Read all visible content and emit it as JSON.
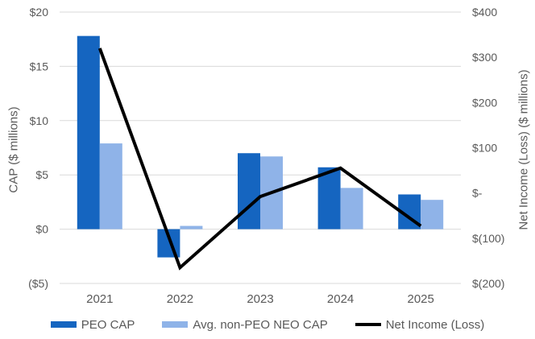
{
  "chart_data": {
    "type": "bar",
    "subtype": "combo-bar-line-dual-axis",
    "categories": [
      "2021",
      "2022",
      "2023",
      "2024",
      "2025"
    ],
    "series": [
      {
        "name": "PEO CAP",
        "type": "bar",
        "axis": "left",
        "color": "#1565C0",
        "values": [
          17.8,
          -2.6,
          7.0,
          5.7,
          3.2
        ]
      },
      {
        "name": "Avg. non-PEO NEO CAP",
        "type": "bar",
        "axis": "left",
        "color": "#8FB3E8",
        "values": [
          7.9,
          0.3,
          6.7,
          3.8,
          2.7
        ]
      },
      {
        "name": "Net Income (Loss)",
        "type": "line",
        "axis": "right",
        "color": "#000000",
        "values": [
          320,
          -165,
          -8,
          55,
          -73
        ]
      }
    ],
    "left_axis": {
      "title": "CAP ($ millions)",
      "min": -5,
      "max": 20,
      "tick_values": [
        20,
        15,
        10,
        5,
        0,
        -5
      ],
      "tick_labels": [
        "$20",
        "$15",
        "$10",
        "$5",
        "$0",
        "($5)"
      ]
    },
    "right_axis": {
      "title": "Net Income (Loss) ($ millions)",
      "min": -200,
      "max": 400,
      "tick_values": [
        400,
        300,
        200,
        100,
        0,
        -100,
        -200
      ],
      "tick_labels": [
        "$400",
        "$300",
        "$200",
        "$100",
        "$-",
        "$(100)",
        "$(200)"
      ]
    },
    "title": "",
    "xlabel": "",
    "grid": true,
    "grid_color": "#D9D9D9",
    "text_color": "#595959",
    "legend_position": "bottom"
  }
}
